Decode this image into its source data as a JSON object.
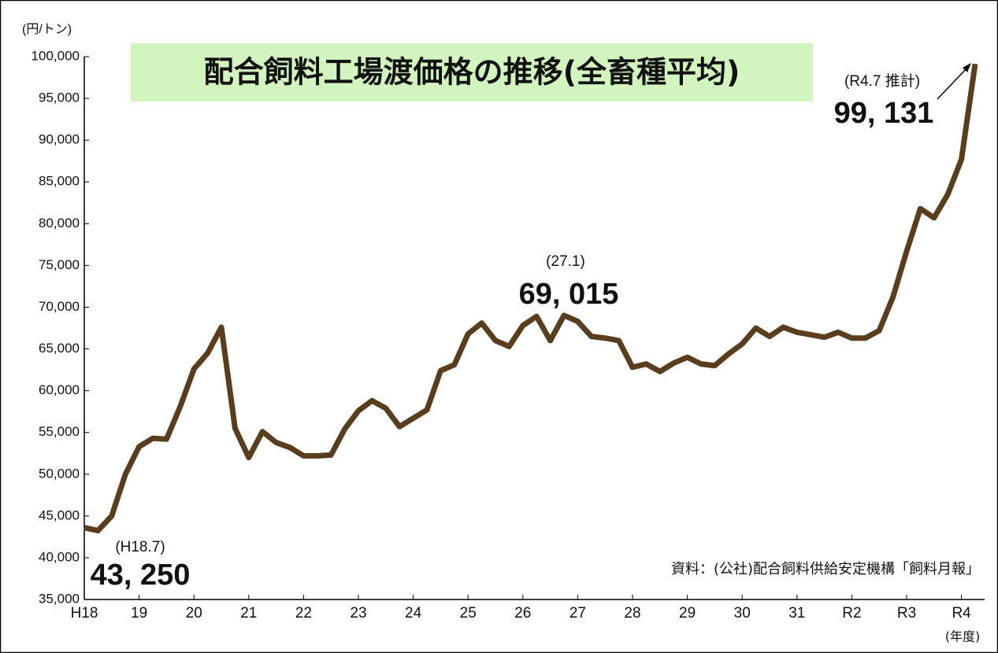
{
  "chart_data": {
    "type": "line",
    "title": "配合飼料工場渡価格の推移(全畜種平均)",
    "y_unit": "(円/トン)",
    "x_unit": "(年度)",
    "source": "資料：(公社)配合飼料供給安定機構「飼料月報」",
    "annotations": [
      "(H18.7)",
      "43, 250",
      "(27.1)",
      "69, 015",
      "(R4.7 推計)",
      "99, 131"
    ],
    "categories": [
      "H18",
      null,
      null,
      null,
      "19",
      null,
      null,
      null,
      "20",
      null,
      null,
      null,
      "21",
      null,
      null,
      null,
      "22",
      null,
      null,
      null,
      "23",
      null,
      null,
      null,
      "24",
      null,
      null,
      null,
      "25",
      null,
      null,
      null,
      "26",
      null,
      null,
      null,
      "27",
      null,
      null,
      null,
      "28",
      null,
      null,
      null,
      "29",
      null,
      null,
      null,
      "30",
      null,
      null,
      null,
      "31",
      null,
      null,
      null,
      "R2",
      null,
      null,
      null,
      "R3",
      null,
      null,
      null,
      "R4",
      null
    ],
    "series": [
      {
        "name": "配合飼料工場渡価格",
        "color": "#5a3d1c",
        "values": [
          43600,
          43250,
          45000,
          50000,
          53300,
          54300,
          54200,
          58100,
          62600,
          64500,
          67600,
          55500,
          52000,
          55100,
          53800,
          53200,
          52200,
          52200,
          52300,
          55400,
          57600,
          58800,
          57900,
          55700,
          56700,
          57700,
          62400,
          63100,
          66800,
          68100,
          66000,
          65300,
          67800,
          68900,
          66000,
          69015,
          68300,
          66500,
          66300,
          66000,
          62800,
          63200,
          62300,
          63300,
          64000,
          63200,
          63000,
          64400,
          65600,
          67500,
          66500,
          67600,
          67000,
          66700,
          66400,
          67000,
          66300,
          66300,
          67200,
          71200,
          76700,
          81800,
          80700,
          83500,
          87700,
          99131
        ]
      }
    ],
    "ylim": [
      35000,
      100000
    ],
    "yticks": [
      {
        "value": 35000,
        "label": "35,000"
      },
      {
        "value": 40000,
        "label": "40,000"
      },
      {
        "value": 45000,
        "label": "45,000"
      },
      {
        "value": 50000,
        "label": "50,000"
      },
      {
        "value": 55000,
        "label": "55,000"
      },
      {
        "value": 60000,
        "label": "60,000"
      },
      {
        "value": 65000,
        "label": "65,000"
      },
      {
        "value": 70000,
        "label": "70,000"
      },
      {
        "value": 75000,
        "label": "75,000"
      },
      {
        "value": 80000,
        "label": "80,000"
      },
      {
        "value": 85000,
        "label": "85,000"
      },
      {
        "value": 90000,
        "label": "90,000"
      },
      {
        "value": 95000,
        "label": "95,000"
      },
      {
        "value": 100000,
        "label": "100,000"
      }
    ],
    "grid": false
  }
}
